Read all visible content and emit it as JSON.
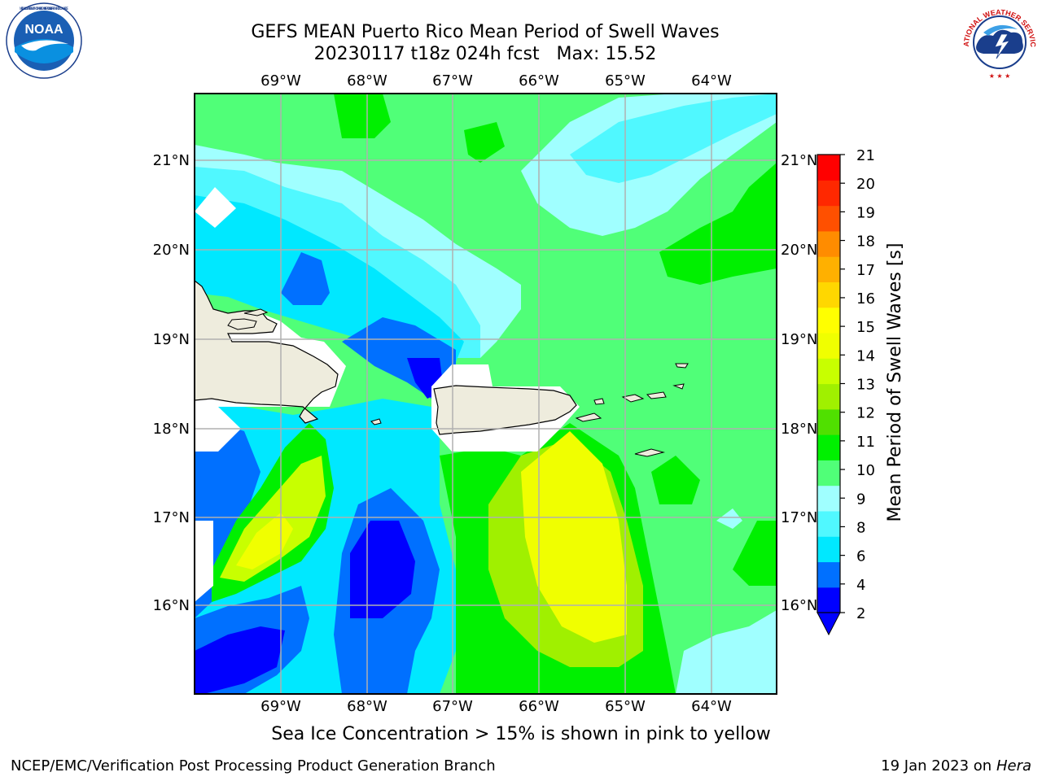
{
  "header": {
    "title_line1": "GEFS MEAN Puerto Rico Mean Period of Swell Waves",
    "title_line2": "20230117 t18z 024h fcst   Max: 15.52"
  },
  "logos": {
    "noaa_text": "NOAA",
    "noaa_ring_text": "NATIONAL OCEANIC AND ATMOSPHERIC ADMINISTRATION · U.S. DEPARTMENT OF COMMERCE",
    "nws_ring_text": "NATIONAL WEATHER SERVICE"
  },
  "map": {
    "lon_labels": [
      "69°W",
      "68°W",
      "67°W",
      "66°W",
      "65°W",
      "64°W"
    ],
    "lat_labels": [
      "21°N",
      "20°N",
      "19°N",
      "18°N",
      "17°N",
      "16°N"
    ],
    "land_color": "#eeecdd",
    "grid_color": "#b0b0b0"
  },
  "colorbar": {
    "label": "Mean Period of Swell Waves [s]",
    "ticks": [
      "21",
      "20",
      "19",
      "18",
      "17",
      "16",
      "15",
      "14",
      "13",
      "12",
      "11",
      "10",
      "9",
      "8",
      "6",
      "4",
      "2"
    ],
    "colors": [
      "#0000ff",
      "#0070ff",
      "#00e8ff",
      "#50f8ff",
      "#a0ffff",
      "#50ff78",
      "#00f000",
      "#50e000",
      "#a0f000",
      "#c8ff00",
      "#f0ff00",
      "#ffff00",
      "#ffd700",
      "#ffb000",
      "#ff8c00",
      "#ff5000",
      "#ff2800",
      "#ff0000"
    ],
    "under_color": "#0000ff"
  },
  "footer": {
    "caption": "Sea Ice Concentration > 15% is shown in pink to yellow",
    "left": "NCEP/EMC/Verification Post Processing Product Generation Branch",
    "right_date": "19 Jan 2023 on ",
    "right_host": "Hera"
  }
}
